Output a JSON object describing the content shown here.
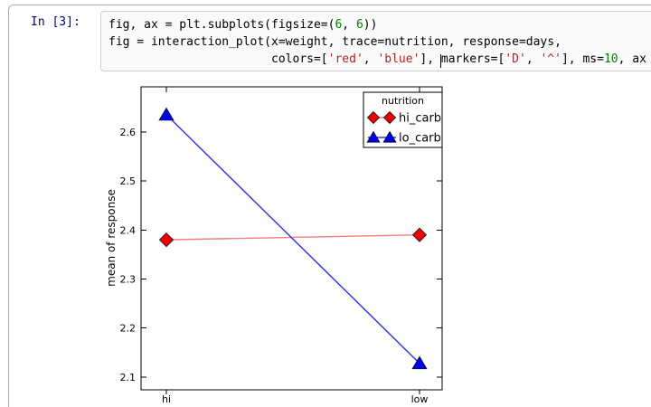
{
  "notebook": {
    "prompt": "In [3]:",
    "code_lines": [
      [
        {
          "t": "fig, ax = plt.subplots(figsize=(",
          "c": "p"
        },
        {
          "t": "6",
          "c": "n"
        },
        {
          "t": ", ",
          "c": "p"
        },
        {
          "t": "6",
          "c": "n"
        },
        {
          "t": "))",
          "c": "p"
        }
      ],
      [
        {
          "t": "fig = interaction_plot(x=weight, trace=nutrition, response=days,",
          "c": "p"
        }
      ],
      [
        {
          "t": "                       colors=[",
          "c": "p"
        },
        {
          "t": "'red'",
          "c": "s"
        },
        {
          "t": ", ",
          "c": "p"
        },
        {
          "t": "'blue'",
          "c": "s"
        },
        {
          "t": "], ",
          "c": "p"
        },
        {
          "cursor": true
        },
        {
          "t": "markers=[",
          "c": "p"
        },
        {
          "t": "'D'",
          "c": "s"
        },
        {
          "t": ", ",
          "c": "p"
        },
        {
          "t": "'^'",
          "c": "s"
        },
        {
          "t": "], ms=",
          "c": "p"
        },
        {
          "t": "10",
          "c": "n"
        },
        {
          "t": ", ax",
          "c": "p"
        }
      ]
    ]
  },
  "chart_data": {
    "type": "line",
    "title": "",
    "xlabel": "",
    "ylabel": "mean of response",
    "categories": [
      "hi",
      "low"
    ],
    "series": [
      {
        "name": "hi_carb",
        "values": [
          2.38,
          2.39
        ],
        "marker": "diamond",
        "marker_color": "#ee0000",
        "line_color": "#f08080"
      },
      {
        "name": "lo_carb",
        "values": [
          2.635,
          2.128
        ],
        "marker": "triangle",
        "marker_color": "#0000ee",
        "line_color": "#3030dd"
      }
    ],
    "yticks": [
      "2.1",
      "2.2",
      "2.3",
      "2.4",
      "2.5",
      "2.6"
    ],
    "ylim": [
      2.074,
      2.692
    ],
    "grid": false,
    "legend": {
      "title": "nutrition",
      "position": "upper right"
    }
  }
}
